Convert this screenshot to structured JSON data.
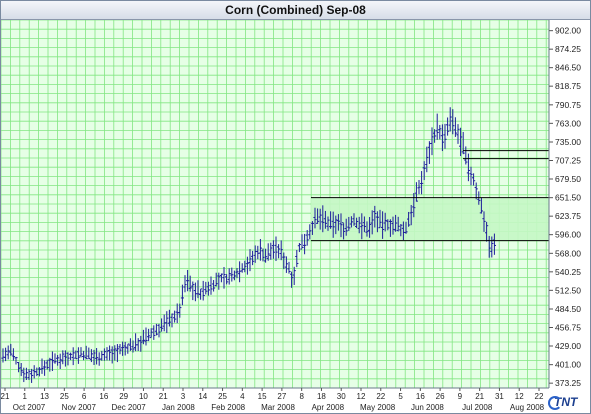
{
  "window": {
    "title": "Corn (Combined) Sep-08"
  },
  "logo": {
    "text": "TNT",
    "icon": "tnt-logo-icon"
  },
  "colors": {
    "grid": "#82e682",
    "background": "#e6ffe6",
    "bars": "#1c1c9a",
    "zone": "#c4f7c4",
    "lines": "#000000"
  },
  "chart_data": {
    "type": "ohlc",
    "title": "Corn (Combined) Sep-08",
    "xlabel": "",
    "ylabel": "",
    "ylim": [
      366,
      918
    ],
    "grid": true,
    "y_ticks": [
      "902.00",
      "874.25",
      "846.50",
      "818.75",
      "790.75",
      "763.00",
      "735.00",
      "707.25",
      "679.50",
      "651.50",
      "623.75",
      "596.00",
      "568.00",
      "540.25",
      "512.50",
      "484.50",
      "456.75",
      "429.00",
      "401.00",
      "373.25"
    ],
    "x_day_ticks": [
      "21",
      "1",
      "13",
      "25",
      "6",
      "16",
      "29",
      "10",
      "21",
      "3",
      "14",
      "25",
      "4",
      "15",
      "27",
      "8",
      "18",
      "30",
      "12",
      "22",
      "5",
      "16",
      "26",
      "9",
      "21",
      "31",
      "12",
      "22"
    ],
    "x_month_labels": [
      "Oct 2007",
      "Nov 2007",
      "Dec 2007",
      "Jan 2008",
      "Feb 2008",
      "Mar 2008",
      "Apr 2008",
      "May 2008",
      "Jun 2008",
      "Jul 2008",
      "Aug 2008"
    ],
    "price_path": [
      [
        0,
        414
      ],
      [
        10,
        420
      ],
      [
        18,
        398
      ],
      [
        26,
        385
      ],
      [
        38,
        392
      ],
      [
        50,
        405
      ],
      [
        65,
        413
      ],
      [
        80,
        417
      ],
      [
        95,
        413
      ],
      [
        110,
        418
      ],
      [
        125,
        425
      ],
      [
        140,
        436
      ],
      [
        155,
        452
      ],
      [
        168,
        468
      ],
      [
        178,
        478
      ],
      [
        185,
        530
      ],
      [
        192,
        515
      ],
      [
        200,
        508
      ],
      [
        210,
        520
      ],
      [
        220,
        530
      ],
      [
        230,
        532
      ],
      [
        240,
        545
      ],
      [
        252,
        560
      ],
      [
        258,
        575
      ],
      [
        265,
        563
      ],
      [
        272,
        576
      ],
      [
        280,
        570
      ],
      [
        287,
        548
      ],
      [
        292,
        530
      ],
      [
        298,
        575
      ],
      [
        305,
        590
      ],
      [
        313,
        615
      ],
      [
        320,
        622
      ],
      [
        328,
        610
      ],
      [
        336,
        614
      ],
      [
        344,
        605
      ],
      [
        352,
        618
      ],
      [
        360,
        610
      ],
      [
        368,
        605
      ],
      [
        374,
        625
      ],
      [
        380,
        610
      ],
      [
        388,
        612
      ],
      [
        396,
        608
      ],
      [
        404,
        600
      ],
      [
        410,
        630
      ],
      [
        417,
        660
      ],
      [
        423,
        690
      ],
      [
        430,
        735
      ],
      [
        437,
        758
      ],
      [
        443,
        735
      ],
      [
        449,
        768
      ],
      [
        456,
        750
      ],
      [
        462,
        728
      ],
      [
        466,
        700
      ],
      [
        472,
        680
      ],
      [
        478,
        650
      ],
      [
        484,
        615
      ],
      [
        489,
        575
      ],
      [
        493,
        580
      ],
      [
        495,
        590
      ]
    ],
    "h_lines": [
      {
        "y": 651.5,
        "x_start": 310
      },
      {
        "y": 587,
        "x_start": 310
      },
      {
        "y": 722,
        "x_start": 462
      },
      {
        "y": 710,
        "x_start": 462
      }
    ],
    "shaded_zone": {
      "y_top": 651.5,
      "y_bottom": 587,
      "x_start": 310
    }
  }
}
